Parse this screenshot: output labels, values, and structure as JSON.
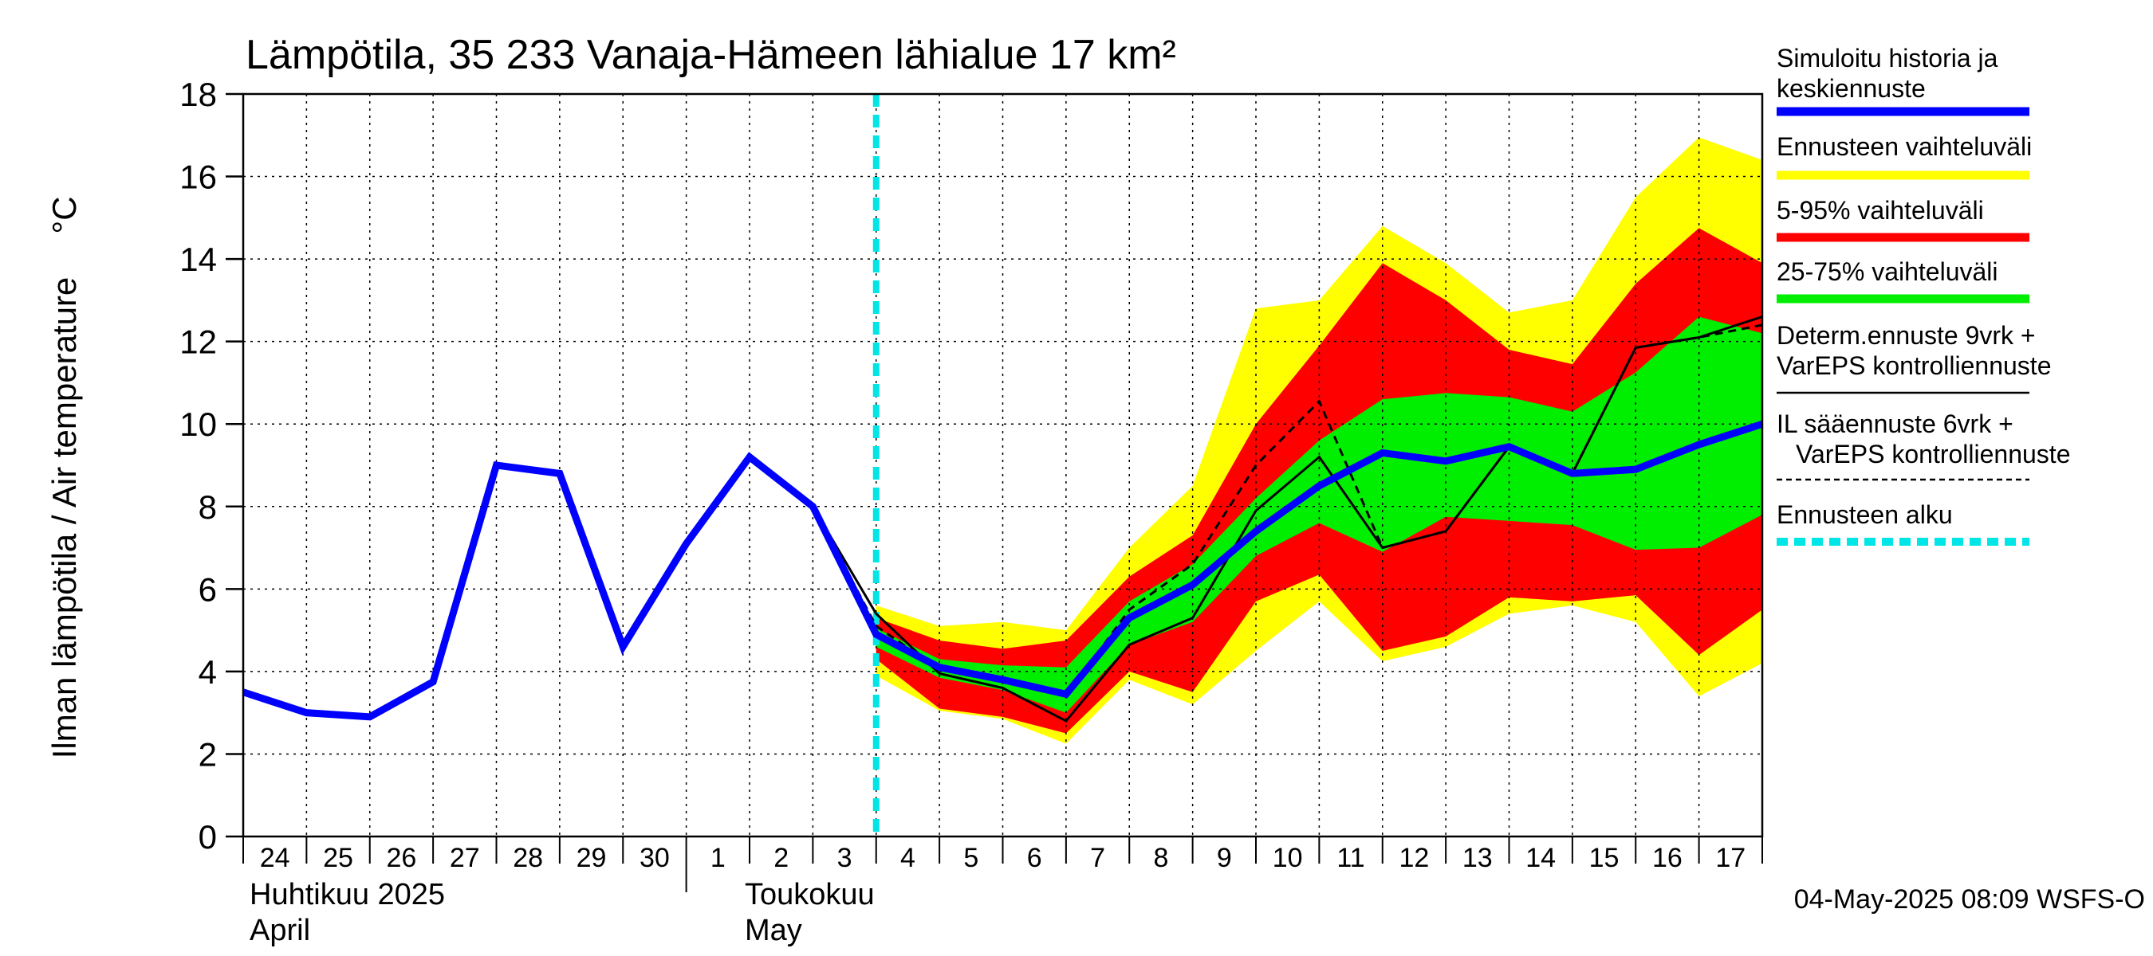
{
  "chart_data": {
    "type": "area",
    "title": "Lämpötila, 35 233 Vanaja-Hämeen lähialue 17 km²",
    "ylabel": "Ilman lämpötila / Air temperature",
    "yunit": "°C",
    "ylim": [
      0,
      18
    ],
    "yticks": [
      0,
      2,
      4,
      6,
      8,
      10,
      12,
      14,
      16,
      18
    ],
    "xlim": [
      0,
      24
    ],
    "x_day_labels": [
      "24",
      "25",
      "26",
      "27",
      "28",
      "29",
      "30",
      "1",
      "2",
      "3",
      "4",
      "5",
      "6",
      "7",
      "8",
      "9",
      "10",
      "11",
      "12",
      "13",
      "14",
      "15",
      "16",
      "17"
    ],
    "month_labels": [
      {
        "fi": "Huhtikuu  2025",
        "en": "April"
      },
      {
        "fi": "Toukokuu",
        "en": "May"
      }
    ],
    "grid": true,
    "forecast_start_x": 10,
    "series": [
      {
        "name": "Simuloitu historia ja keskiennuste",
        "color": "#0000ff",
        "x": [
          0,
          1,
          2,
          3,
          4,
          5,
          6,
          7,
          8,
          9,
          10,
          11,
          12,
          13,
          14,
          15,
          16,
          17,
          18,
          19,
          20,
          21,
          22,
          23,
          24
        ],
        "values": [
          3.5,
          3.0,
          2.9,
          3.75,
          9.0,
          8.8,
          4.6,
          7.1,
          9.2,
          8.0,
          4.9,
          4.1,
          3.8,
          3.45,
          5.3,
          6.1,
          7.4,
          8.5,
          9.3,
          9.1,
          9.45,
          8.8,
          8.9,
          9.5,
          10.0
        ]
      },
      {
        "name": "Determ.ennuste 9vrk + VarEPS kontrolliennuste",
        "color": "#000000",
        "x": [
          8,
          9,
          10,
          11,
          12,
          13,
          14,
          15,
          16,
          17,
          18,
          19,
          20,
          21,
          22,
          23,
          24
        ],
        "values": [
          9.25,
          8.0,
          5.4,
          3.95,
          3.6,
          2.8,
          4.65,
          5.3,
          7.9,
          9.2,
          7.0,
          7.4,
          9.45,
          8.8,
          11.85,
          12.1,
          12.6
        ]
      },
      {
        "name": "IL sääennuste 6vrk  + VarEPS kontrolliennuste",
        "color": "#000000",
        "dashed": true,
        "x": [
          8,
          9,
          10,
          11,
          12,
          13,
          14,
          15,
          16,
          17,
          18,
          19,
          20,
          21,
          22,
          23,
          24
        ],
        "values": [
          9.25,
          8.0,
          5.1,
          4.05,
          3.75,
          3.4,
          5.5,
          6.6,
          9.0,
          10.55,
          7.0,
          7.4,
          9.45,
          8.8,
          11.85,
          12.1,
          12.4
        ]
      }
    ],
    "bands": [
      {
        "name": "Ennusteen vaihteluväli",
        "color": "#ffff00",
        "x": [
          10,
          11,
          12,
          13,
          14,
          15,
          16,
          17,
          18,
          19,
          20,
          21,
          22,
          23,
          24
        ],
        "upper": [
          5.6,
          5.1,
          5.2,
          5.0,
          7.0,
          8.5,
          12.8,
          13.0,
          14.8,
          13.9,
          12.7,
          13.0,
          15.5,
          16.95,
          16.4
        ],
        "lower": [
          3.9,
          3.05,
          2.85,
          2.25,
          3.8,
          3.2,
          4.5,
          5.7,
          4.25,
          4.6,
          5.4,
          5.6,
          5.2,
          3.4,
          4.2
        ]
      },
      {
        "name": "5-95% vaihteluväli",
        "color": "#ff0000",
        "x": [
          10,
          11,
          12,
          13,
          14,
          15,
          16,
          17,
          18,
          19,
          20,
          21,
          22,
          23,
          24
        ],
        "upper": [
          5.3,
          4.75,
          4.55,
          4.75,
          6.3,
          7.3,
          10.0,
          11.9,
          13.9,
          13.0,
          11.8,
          11.45,
          13.4,
          14.75,
          13.9
        ],
        "lower": [
          4.3,
          3.1,
          2.9,
          2.5,
          4.0,
          3.5,
          5.7,
          6.35,
          4.5,
          4.85,
          5.8,
          5.7,
          5.85,
          4.4,
          5.5
        ]
      },
      {
        "name": "25-75% vaihteluväli",
        "color": "#00ee00",
        "x": [
          10,
          11,
          12,
          13,
          14,
          15,
          16,
          17,
          18,
          19,
          20,
          21,
          22,
          23,
          24
        ],
        "upper": [
          5.05,
          4.3,
          4.15,
          4.1,
          5.7,
          6.6,
          8.2,
          9.6,
          10.6,
          10.75,
          10.65,
          10.3,
          11.25,
          12.6,
          12.2
        ],
        "lower": [
          4.6,
          3.85,
          3.55,
          3.0,
          4.65,
          5.2,
          6.8,
          7.6,
          6.9,
          7.75,
          7.65,
          7.55,
          6.95,
          7.0,
          7.8
        ]
      }
    ],
    "legend": {
      "position": "right",
      "items": [
        {
          "label": "Simuloitu historia ja keskiennuste",
          "color": "#0000ff",
          "style": "thick"
        },
        {
          "label": "Ennusteen vaihteluväli",
          "color": "#ffff00",
          "style": "thick"
        },
        {
          "label": "5-95% vaihteluväli",
          "color": "#ff0000",
          "style": "thick"
        },
        {
          "label": "25-75% vaihteluväli",
          "color": "#00ee00",
          "style": "thick"
        },
        {
          "label": "Determ.ennuste 9vrk + VarEPS kontrolliennuste",
          "color": "#000000",
          "style": "thin"
        },
        {
          "label": "IL sääennuste 6vrk  + VarEPS kontrolliennuste",
          "color": "#000000",
          "style": "dashed"
        },
        {
          "label": "Ennusteen alku",
          "color": "#00e5e5",
          "style": "thick-dashed"
        }
      ]
    },
    "footer": "04-May-2025 08:09 WSFS-O"
  }
}
